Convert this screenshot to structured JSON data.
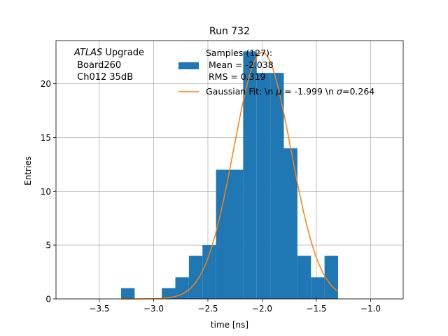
{
  "chart_data": {
    "type": "bar",
    "title": "Run 732",
    "xlabel": "time [ns]",
    "ylabel": "Entries",
    "xlim": [
      -3.9,
      -0.7
    ],
    "ylim": [
      0,
      24
    ],
    "xticks": [
      -3.5,
      -3.0,
      -2.5,
      -2.0,
      -1.5,
      -1.0
    ],
    "xtick_labels": [
      "−3.5",
      "−3.0",
      "−2.5",
      "−2.0",
      "−1.5",
      "−1.0"
    ],
    "yticks": [
      0,
      5,
      10,
      15,
      20
    ],
    "ytick_labels": [
      "0",
      "5",
      "10",
      "15",
      "20"
    ],
    "grid": true,
    "legend_position": "top-center",
    "annotation": {
      "position": "top-left",
      "italic": "ATLAS",
      "line1_rest": " Upgrade",
      "line2": " Board260",
      "line3": " Ch012 35dB"
    },
    "histogram": {
      "name_lines": [
        "Samples (127):",
        " Mean = -2.038",
        " RMS = 0.319"
      ],
      "color": "#1f77b4",
      "bin_edges": [
        -3.3125,
        -3.1875,
        -3.0625,
        -2.9375,
        -2.8125,
        -2.6875,
        -2.5625,
        -2.4375,
        -2.3125,
        -2.1875,
        -2.0625,
        -1.9375,
        -1.8125,
        -1.6875,
        -1.5625,
        -1.4375,
        -1.3125
      ],
      "counts": [
        1,
        0,
        0,
        1,
        2,
        4,
        5,
        12,
        12,
        23,
        21,
        21,
        14,
        4,
        2,
        4
      ],
      "bin_edges_rescaled_note": "",
      "edges": [
        -3.3,
        -3.175,
        -3.05,
        -2.925,
        -2.8,
        -2.675,
        -2.55,
        -2.425,
        -2.3,
        -2.175,
        -2.05,
        -1.925,
        -1.8,
        -1.675,
        -1.55,
        -1.425,
        -1.3
      ]
    },
    "fit": {
      "name": "Gaussian Fit: \\n μ = -1.999 \\n σ=0.264",
      "name_prefix": "Gaussian Fit: \\n ",
      "mu_text": "μ",
      "mu_value": " = -1.999 \\n ",
      "sigma_text": "σ",
      "sigma_value": "=0.264",
      "color": "#ff7f0e",
      "mu": -1.999,
      "sigma": 0.264,
      "amplitude": 22.9,
      "x_range": [
        -3.3,
        -1.3
      ]
    }
  }
}
